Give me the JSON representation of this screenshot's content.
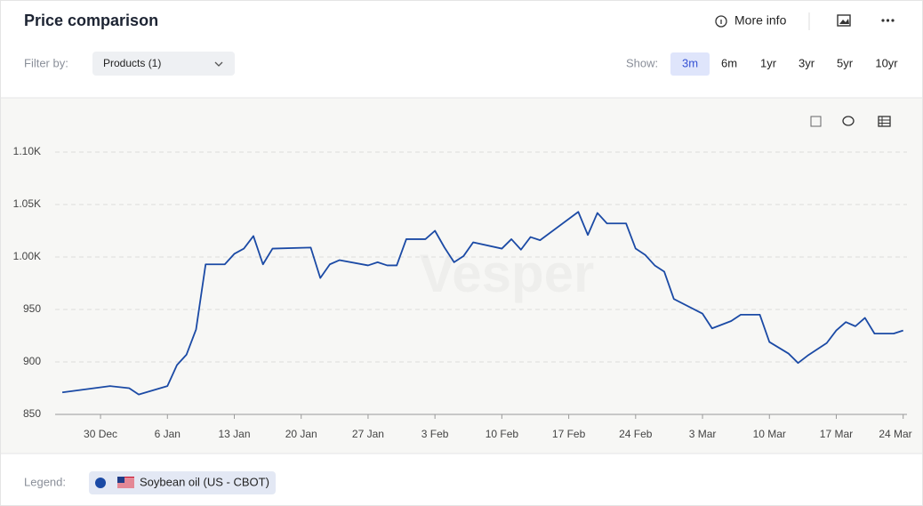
{
  "header": {
    "title": "Price comparison",
    "more_info": "More info"
  },
  "filter": {
    "label": "Filter by:",
    "value": "Products (1)"
  },
  "show": {
    "label": "Show:",
    "ranges": [
      "3m",
      "6m",
      "1yr",
      "3yr",
      "5yr",
      "10yr"
    ],
    "selected": "3m"
  },
  "watermark": "Vesper",
  "legend_label": "Legend:",
  "chart_data": {
    "type": "line",
    "x": [
      -4,
      1,
      3,
      4,
      7,
      8,
      9,
      10,
      11,
      13,
      14,
      15,
      16,
      17,
      18,
      22,
      23,
      24,
      25,
      28,
      29,
      30,
      31,
      32,
      34,
      35,
      36,
      37,
      38,
      39,
      42,
      43,
      44,
      45,
      46,
      50,
      51,
      52,
      53,
      55,
      56,
      57,
      58,
      59,
      60,
      63,
      64,
      66,
      67,
      69,
      70,
      72,
      73,
      74,
      76,
      77,
      78,
      79,
      80,
      81,
      83,
      84
    ],
    "series": [
      {
        "name": "Soybean oil (US - CBOT)",
        "color": "#1b4aa5",
        "values": [
          871,
          877,
          875,
          869,
          877,
          897,
          907,
          931,
          993,
          993,
          1003,
          1008,
          1020,
          993,
          1008,
          1009,
          980,
          993,
          997,
          992,
          995,
          992,
          992,
          1017,
          1017,
          1025,
          1009,
          995,
          1001,
          1014,
          1008,
          1017,
          1007,
          1019,
          1016,
          1043,
          1021,
          1042,
          1032,
          1032,
          1008,
          1002,
          992,
          986,
          960,
          946,
          932,
          939,
          945,
          945,
          919,
          908,
          899,
          906,
          918,
          930,
          938,
          934,
          942,
          927,
          927,
          930
        ]
      }
    ],
    "xlim": [
      -4.75,
      84.4
    ],
    "xticks": [
      {
        "value": 0,
        "label": "30 Dec"
      },
      {
        "value": 7,
        "label": "6 Jan"
      },
      {
        "value": 14,
        "label": "13 Jan"
      },
      {
        "value": 21,
        "label": "20 Jan"
      },
      {
        "value": 28,
        "label": "27 Jan"
      },
      {
        "value": 35,
        "label": "3 Feb"
      },
      {
        "value": 42,
        "label": "10 Feb"
      },
      {
        "value": 49,
        "label": "17 Feb"
      },
      {
        "value": 56,
        "label": "24 Feb"
      },
      {
        "value": 63,
        "label": "3 Mar"
      },
      {
        "value": 70,
        "label": "10 Mar"
      },
      {
        "value": 77,
        "label": "17 Mar"
      },
      {
        "value": 84,
        "label": "24 Mar"
      }
    ],
    "ylim": [
      850,
      1100
    ],
    "yticks": [
      850,
      900,
      950,
      {
        "value": 1000,
        "label": "1.00K"
      },
      {
        "value": 1050,
        "label": "1.05K"
      },
      {
        "value": 1100,
        "label": "1.10K"
      }
    ],
    "grid": true
  }
}
